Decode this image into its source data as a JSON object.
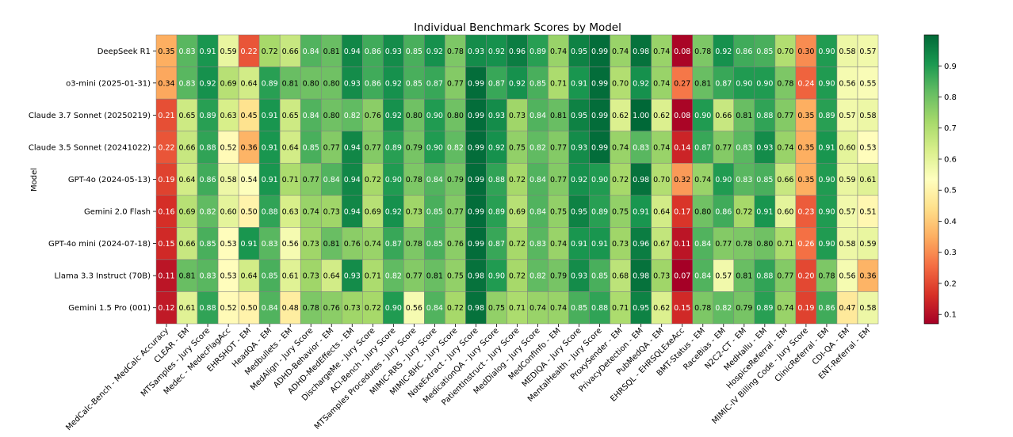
{
  "chart_data": {
    "type": "heatmap",
    "title": "Individual Benchmark Scores by Model",
    "xlabel": "",
    "ylabel": "Model",
    "rows": [
      "DeepSeek R1",
      "o3-mini (2025-01-31)",
      "Claude 3.7 Sonnet (20250219)",
      "Claude 3.5 Sonnet (20241022)",
      "GPT-4o (2024-05-13)",
      "Gemini 2.0 Flash",
      "GPT-4o mini (2024-07-18)",
      "Llama 3.3 Instruct (70B)",
      "Gemini 1.5 Pro (001)"
    ],
    "columns": [
      "MedCalc-Bench - MedCalc Accuracy",
      "CLEAR - EM",
      "MTSamples - Jury Score",
      "Medec - MedecFlagAcc",
      "EHRSHOT - EM",
      "HeadQA - EM",
      "Medbullets - EM",
      "MedAlign - Jury Score",
      "ADHD-Behavior - EM",
      "ADHD-MedEffects - EM",
      "DischargeMe - Jury Score",
      "ACI-Bench - Jury Score",
      "MTSamples Procedures - Jury Score",
      "MIMIC-RRS - Jury Score",
      "MIMIC-BHC - Jury Score",
      "NoteExtract - Jury Score",
      "MedicationQA - Jury Score",
      "PatientInstruct - Jury Score",
      "MedDialog - Jury Score",
      "MedConfInfo - EM",
      "MEDIQA - Jury Score",
      "MentalHealth - Jury Score",
      "ProxySender - EM",
      "PrivacyDetection - EM",
      "PubMedQA - EM",
      "EHRSQL - EHRSQLExeAcc",
      "BMT-Status - EM",
      "RaceBias - EM",
      "N2C2-CT - EM",
      "MedHallu - EM",
      "HospiceReferral - EM",
      "MIMIC-IV Billing Code - Jury Score",
      "ClinicReferral - EM",
      "CDI-QA - EM",
      "ENT-Referral - EM"
    ],
    "values": [
      [
        "0.35",
        "0.83",
        "0.91",
        "0.59",
        "0.22",
        "0.72",
        "0.66",
        "0.84",
        "0.81",
        "0.94",
        "0.86",
        "0.93",
        "0.85",
        "0.92",
        "0.78",
        "0.93",
        "0.92",
        "0.96",
        "0.89",
        "0.74",
        "0.95",
        "0.99",
        "0.74",
        "0.98",
        "0.74",
        "0.08",
        "0.78",
        "0.92",
        "0.86",
        "0.85",
        "0.70",
        "0.30",
        "0.90",
        "0.58",
        "0.57"
      ],
      [
        "0.34",
        "0.83",
        "0.92",
        "0.69",
        "0.64",
        "0.89",
        "0.81",
        "0.80",
        "0.80",
        "0.93",
        "0.86",
        "0.92",
        "0.85",
        "0.87",
        "0.77",
        "0.99",
        "0.87",
        "0.92",
        "0.85",
        "0.71",
        "0.91",
        "0.99",
        "0.70",
        "0.92",
        "0.74",
        "0.27",
        "0.81",
        "0.87",
        "0.90",
        "0.90",
        "0.78",
        "0.24",
        "0.90",
        "0.56",
        "0.55"
      ],
      [
        "0.21",
        "0.65",
        "0.89",
        "0.63",
        "0.45",
        "0.91",
        "0.65",
        "0.84",
        "0.80",
        "0.82",
        "0.76",
        "0.92",
        "0.80",
        "0.90",
        "0.80",
        "0.99",
        "0.93",
        "0.73",
        "0.84",
        "0.81",
        "0.95",
        "0.99",
        "0.62",
        "1.00",
        "0.62",
        "0.08",
        "0.90",
        "0.66",
        "0.81",
        "0.88",
        "0.77",
        "0.35",
        "0.89",
        "0.57",
        "0.58"
      ],
      [
        "0.22",
        "0.66",
        "0.88",
        "0.52",
        "0.36",
        "0.91",
        "0.64",
        "0.85",
        "0.77",
        "0.94",
        "0.77",
        "0.89",
        "0.79",
        "0.90",
        "0.82",
        "0.99",
        "0.92",
        "0.75",
        "0.82",
        "0.77",
        "0.93",
        "0.99",
        "0.74",
        "0.83",
        "0.74",
        "0.14",
        "0.87",
        "0.77",
        "0.83",
        "0.93",
        "0.74",
        "0.35",
        "0.91",
        "0.60",
        "0.53"
      ],
      [
        "0.19",
        "0.64",
        "0.86",
        "0.58",
        "0.54",
        "0.91",
        "0.71",
        "0.77",
        "0.84",
        "0.94",
        "0.72",
        "0.90",
        "0.78",
        "0.84",
        "0.79",
        "0.99",
        "0.88",
        "0.72",
        "0.84",
        "0.77",
        "0.92",
        "0.90",
        "0.72",
        "0.98",
        "0.70",
        "0.32",
        "0.74",
        "0.90",
        "0.83",
        "0.85",
        "0.66",
        "0.35",
        "0.90",
        "0.59",
        "0.61"
      ],
      [
        "0.16",
        "0.69",
        "0.82",
        "0.60",
        "0.50",
        "0.88",
        "0.63",
        "0.74",
        "0.73",
        "0.94",
        "0.69",
        "0.92",
        "0.73",
        "0.85",
        "0.77",
        "0.99",
        "0.89",
        "0.69",
        "0.84",
        "0.75",
        "0.95",
        "0.89",
        "0.75",
        "0.91",
        "0.64",
        "0.17",
        "0.80",
        "0.86",
        "0.72",
        "0.91",
        "0.60",
        "0.23",
        "0.90",
        "0.57",
        "0.51"
      ],
      [
        "0.15",
        "0.66",
        "0.85",
        "0.53",
        "0.91",
        "0.83",
        "0.56",
        "0.73",
        "0.81",
        "0.76",
        "0.74",
        "0.87",
        "0.78",
        "0.85",
        "0.76",
        "0.99",
        "0.87",
        "0.72",
        "0.83",
        "0.74",
        "0.91",
        "0.91",
        "0.73",
        "0.96",
        "0.67",
        "0.11",
        "0.84",
        "0.77",
        "0.78",
        "0.80",
        "0.71",
        "0.26",
        "0.90",
        "0.58",
        "0.59"
      ],
      [
        "0.11",
        "0.81",
        "0.83",
        "0.53",
        "0.64",
        "0.85",
        "0.61",
        "0.73",
        "0.64",
        "0.93",
        "0.71",
        "0.82",
        "0.77",
        "0.81",
        "0.75",
        "0.98",
        "0.90",
        "0.72",
        "0.82",
        "0.79",
        "0.93",
        "0.85",
        "0.68",
        "0.98",
        "0.73",
        "0.07",
        "0.84",
        "0.57",
        "0.81",
        "0.88",
        "0.77",
        "0.20",
        "0.78",
        "0.56",
        "0.36"
      ],
      [
        "0.12",
        "0.61",
        "0.88",
        "0.52",
        "0.50",
        "0.84",
        "0.48",
        "0.78",
        "0.76",
        "0.73",
        "0.72",
        "0.90",
        "0.56",
        "0.84",
        "0.72",
        "0.98",
        "0.75",
        "0.71",
        "0.74",
        "0.74",
        "0.85",
        "0.88",
        "0.71",
        "0.95",
        "0.62",
        "0.15",
        "0.78",
        "0.82",
        "0.79",
        "0.89",
        "0.74",
        "0.19",
        "0.86",
        "0.47",
        "0.58"
      ]
    ],
    "colorbar": {
      "colormap": "red-yellow-green",
      "range": [
        0.07,
        1.0
      ],
      "ticks": [
        "0.1",
        "0.2",
        "0.3",
        "0.4",
        "0.5",
        "0.6",
        "0.7",
        "0.8",
        "0.9"
      ]
    },
    "colors": {
      "low": "#a50026",
      "mid": "#ffffbf",
      "high": "#006837"
    }
  }
}
